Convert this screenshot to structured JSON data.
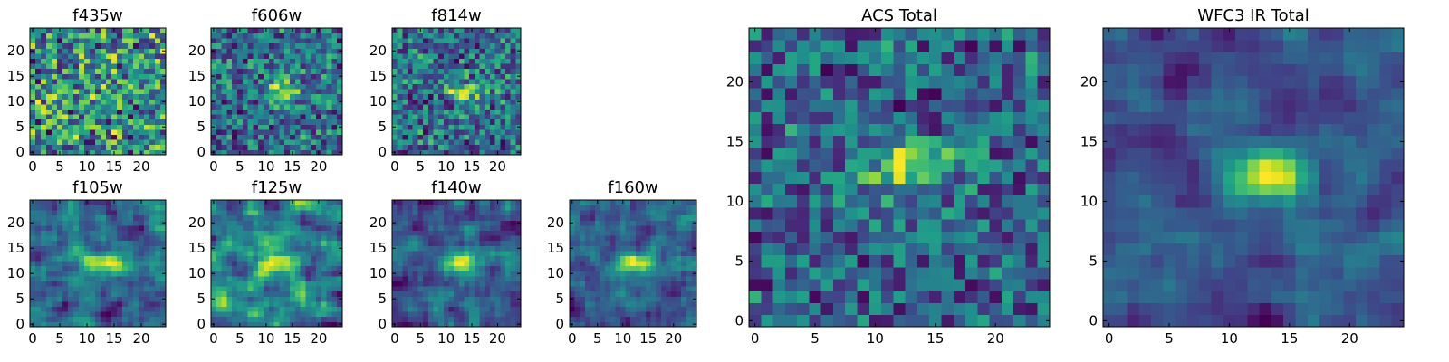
{
  "chart_data": {
    "type": "heatmap",
    "colormap": "viridis",
    "panels": [
      {
        "id": "f435w",
        "title": "f435w",
        "size": 25,
        "x_ticks": [
          0,
          5,
          10,
          15,
          20
        ],
        "y_ticks": [
          0,
          5,
          10,
          15,
          20
        ],
        "texture": "noise",
        "blob": {
          "x": 12,
          "y": 11,
          "strength": 0.0
        },
        "seed": 11
      },
      {
        "id": "f606w",
        "title": "f606w",
        "size": 25,
        "x_ticks": [
          0,
          5,
          10,
          15,
          20
        ],
        "y_ticks": [
          0,
          5,
          10,
          15,
          20
        ],
        "texture": "noise",
        "blob": {
          "x": 13,
          "y": 12,
          "strength": 0.5
        },
        "seed": 23
      },
      {
        "id": "f814w",
        "title": "f814w",
        "size": 25,
        "x_ticks": [
          0,
          5,
          10,
          15,
          20
        ],
        "y_ticks": [
          0,
          5,
          10,
          15,
          20
        ],
        "texture": "noise",
        "blob": {
          "x": 14,
          "y": 12,
          "strength": 0.6
        },
        "seed": 37
      },
      {
        "id": "f105w",
        "title": "f105w",
        "size": 25,
        "x_ticks": [
          0,
          5,
          10,
          15,
          20
        ],
        "y_ticks": [
          0,
          5,
          10,
          15,
          20
        ],
        "texture": "smooth",
        "blob": {
          "x": 13,
          "y": 12,
          "strength": 0.4
        },
        "seed": 41
      },
      {
        "id": "f125w",
        "title": "f125w",
        "size": 25,
        "x_ticks": [
          0,
          5,
          10,
          15,
          20
        ],
        "y_ticks": [
          0,
          5,
          10,
          15,
          20
        ],
        "texture": "smooth",
        "blob": {
          "x": 13,
          "y": 12,
          "strength": 0.3
        },
        "seed": 53
      },
      {
        "id": "f140w",
        "title": "f140w",
        "size": 25,
        "x_ticks": [
          0,
          5,
          10,
          15,
          20
        ],
        "y_ticks": [
          0,
          5,
          10,
          15,
          20
        ],
        "texture": "smooth",
        "blob": {
          "x": 13,
          "y": 12,
          "strength": 0.6
        },
        "seed": 67
      },
      {
        "id": "f160w",
        "title": "f160w",
        "size": 25,
        "x_ticks": [
          0,
          5,
          10,
          15,
          20
        ],
        "y_ticks": [
          0,
          5,
          10,
          15,
          20
        ],
        "texture": "smooth",
        "blob": {
          "x": 12,
          "y": 12,
          "strength": 0.6
        },
        "seed": 79
      },
      {
        "id": "acs-total",
        "title": "ACS Total",
        "size": 25,
        "x_ticks": [
          0,
          5,
          10,
          15,
          20
        ],
        "y_ticks": [
          0,
          5,
          10,
          15,
          20
        ],
        "texture": "noise",
        "blob": {
          "x": 13,
          "y": 13,
          "strength": 0.7
        },
        "seed": 89
      },
      {
        "id": "wfc3-ir-total",
        "title": "WFC3 IR Total",
        "size": 25,
        "x_ticks": [
          0,
          5,
          10,
          15,
          20
        ],
        "y_ticks": [
          0,
          5,
          10,
          15,
          20
        ],
        "texture": "smooth",
        "blob": {
          "x": 13,
          "y": 12,
          "strength": 0.8
        },
        "seed": 97
      }
    ]
  }
}
